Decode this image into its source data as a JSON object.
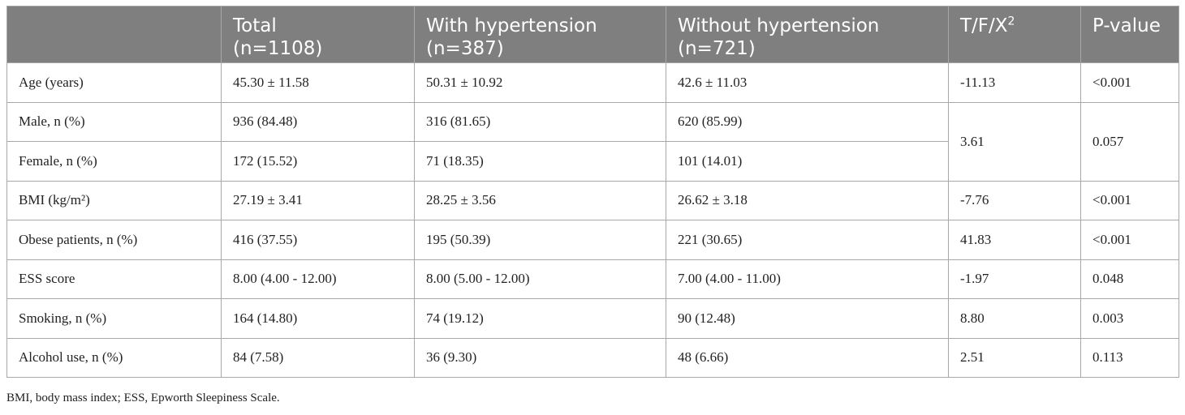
{
  "table": {
    "headers": {
      "label": "",
      "total_line1": "Total",
      "total_line2": "(n=1108)",
      "with_line1": "With hypertension",
      "with_line2": "(n=387)",
      "without_line1": "Without hypertension",
      "without_line2": "(n=721)",
      "stat_base": "T/F/X",
      "stat_sup": "2",
      "pvalue": "P-value"
    },
    "rows": [
      {
        "label": "Age (years)",
        "total": "45.30 ± 11.58",
        "with": "50.31 ± 10.92",
        "without": "42.6 ± 11.03",
        "stat": "-11.13",
        "p": "<0.001"
      },
      {
        "label": "Male, n (%)",
        "total": "936 (84.48)",
        "with": "316 (81.65)",
        "without": "620 (85.99)",
        "stat": "3.61",
        "p": "0.057"
      },
      {
        "label": "Female, n (%)",
        "total": "172 (15.52)",
        "with": "71 (18.35)",
        "without": "101 (14.01)"
      },
      {
        "label": "BMI (kg/m²)",
        "total": "27.19 ± 3.41",
        "with": "28.25 ± 3.56",
        "without": "26.62 ± 3.18",
        "stat": "-7.76",
        "p": "<0.001"
      },
      {
        "label": "Obese patients, n (%)",
        "total": "416 (37.55)",
        "with": "195 (50.39)",
        "without": "221 (30.65)",
        "stat": "41.83",
        "p": "<0.001"
      },
      {
        "label": "ESS score",
        "total": "8.00 (4.00 - 12.00)",
        "with": "8.00 (5.00 - 12.00)",
        "without": "7.00 (4.00 - 11.00)",
        "stat": "-1.97",
        "p": "0.048"
      },
      {
        "label": "Smoking, n (%)",
        "total": "164 (14.80)",
        "with": "74 (19.12)",
        "without": "90 (12.48)",
        "stat": "8.80",
        "p": "0.003"
      },
      {
        "label": "Alcohol use, n (%)",
        "total": "84 (7.58)",
        "with": "36 (9.30)",
        "without": "48 (6.66)",
        "stat": "2.51",
        "p": "0.113"
      }
    ]
  },
  "footnote": "BMI, body mass index; ESS, Epworth Sleepiness Scale."
}
